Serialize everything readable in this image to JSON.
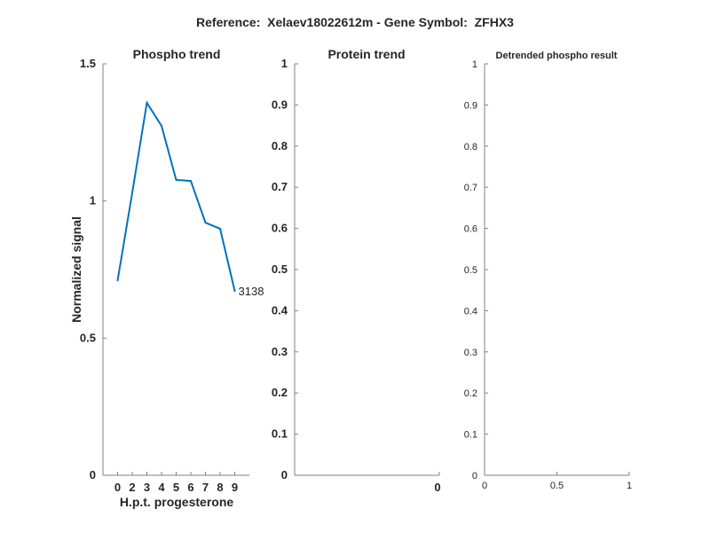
{
  "figure_title": "Reference:  Xelaev18022612m - Gene Symbol:  ZFHX3",
  "chart_data": [
    {
      "type": "line",
      "title": "Phospho trend",
      "xlabel": "H.p.t. progesterone",
      "ylabel": "Normalized signal",
      "categories": [
        "0",
        "2",
        "3",
        "4",
        "5",
        "6",
        "7",
        "8",
        "9"
      ],
      "ylim": [
        0,
        1.5
      ],
      "yticks": [
        "0",
        "0.5",
        "1",
        "1.5"
      ],
      "series": [
        {
          "name": "3138",
          "values": [
            0.71,
            1.03,
            1.358,
            1.274,
            1.077,
            1.073,
            0.921,
            0.899,
            0.672
          ],
          "color": "#0072BD"
        }
      ],
      "end_label": "3138"
    },
    {
      "type": "line",
      "title": "Protein trend",
      "ylim": [
        0,
        1
      ],
      "yticks": [
        "0",
        "0.1",
        "0.2",
        "0.3",
        "0.4",
        "0.5",
        "0.6",
        "0.7",
        "0.8",
        "0.9",
        "1"
      ],
      "xticks": [
        "0"
      ],
      "series": []
    },
    {
      "type": "line",
      "title": "Detrended phospho result",
      "ylim": [
        0,
        1
      ],
      "xlim": [
        0,
        1
      ],
      "yticks": [
        "0",
        "0.1",
        "0.2",
        "0.3",
        "0.4",
        "0.5",
        "0.6",
        "0.7",
        "0.8",
        "0.9",
        "1"
      ],
      "xticks": [
        "0",
        "0.5",
        "1"
      ],
      "series": []
    }
  ]
}
